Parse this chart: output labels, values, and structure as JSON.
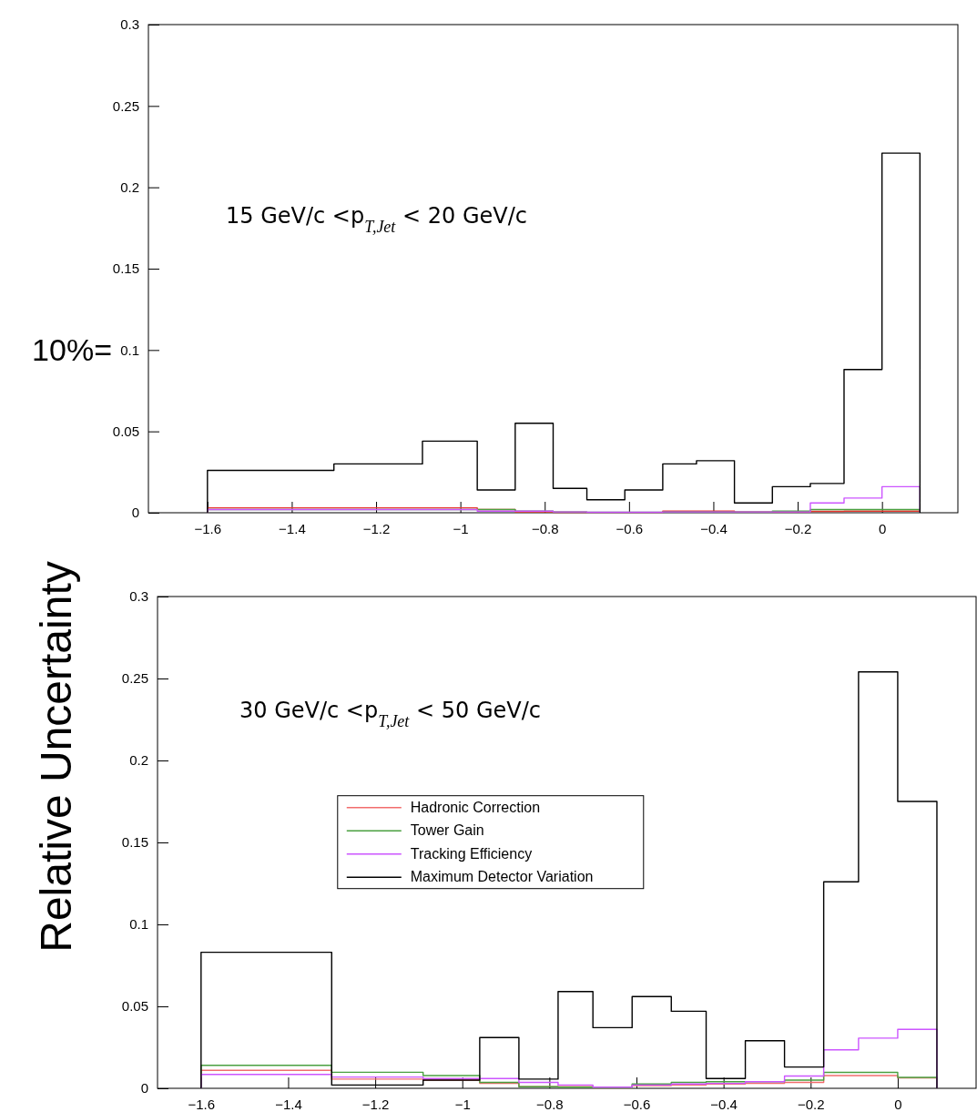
{
  "chart_data": [
    {
      "type": "histogram",
      "annotations": [
        "15 GeV/c <p$_{T,Jet}$ < 20 GeV/c",
        "10%="
      ],
      "ylabel": "Relative Uncertainty",
      "bins": [
        -1.6,
        -1.3,
        -1.09,
        -0.96,
        -0.87,
        -0.78,
        -0.7,
        -0.61,
        -0.52,
        -0.44,
        -0.35,
        -0.26,
        -0.17,
        -0.09,
        0,
        0.09
      ],
      "series": [
        {
          "color": "#e8352d",
          "values": [
            0.003,
            0.003,
            0.003,
            0.002,
            0.0005,
            0.0003,
            0.0002,
            0.0002,
            0.001,
            0.001,
            0.0005,
            0.0005,
            0.0008,
            0.001,
            0.001
          ]
        },
        {
          "color": "#4aa040",
          "values": [
            0.002,
            0.002,
            0.002,
            0.002,
            0.001,
            0.0005,
            0.0003,
            0.0003,
            0.0005,
            0.0005,
            0.0005,
            0.001,
            0.002,
            0.002,
            0.002
          ]
        },
        {
          "color": "#cc55ff",
          "values": [
            0.002,
            0.002,
            0.002,
            0.001,
            0.001,
            0.0005,
            0.0003,
            0.0003,
            0.0005,
            0.0005,
            0.0005,
            0.0005,
            0.006,
            0.009,
            0.016
          ]
        },
        {
          "color": "#000000",
          "values": [
            0.026,
            0.03,
            0.044,
            0.014,
            0.055,
            0.015,
            0.008,
            0.014,
            0.03,
            0.032,
            0.006,
            0.016,
            0.018,
            0.088,
            0.221
          ]
        }
      ],
      "xlim": [
        -1.74,
        0.18
      ],
      "xticks": [
        -1.6,
        -1.4,
        -1.2,
        -1,
        -0.8,
        -0.6,
        -0.4,
        -0.2,
        0
      ],
      "ylim": [
        0,
        0.3
      ],
      "yticks": [
        0,
        0.05,
        0.1,
        0.15,
        0.2,
        0.25,
        0.3
      ],
      "legend": false
    },
    {
      "type": "histogram",
      "annotations": [
        "30 GeV/c <p$_{T,Jet}$ < 50 GeV/c"
      ],
      "bins": [
        -1.6,
        -1.3,
        -1.09,
        -0.96,
        -0.87,
        -0.78,
        -0.7,
        -0.61,
        -0.52,
        -0.44,
        -0.35,
        -0.26,
        -0.17,
        -0.09,
        0,
        0.09
      ],
      "series": [
        {
          "name": "Hadronic Correction",
          "color": "#f26d6d",
          "values": [
            0.011,
            0.0056,
            0.005,
            0.003,
            0.001,
            0.001,
            0.0002,
            0.0016,
            0.002,
            0.0026,
            0.003,
            0.0036,
            0.0078,
            0.0078,
            0.0063
          ]
        },
        {
          "name": "Tower Gain",
          "color": "#4aa040",
          "values": [
            0.014,
            0.0098,
            0.0078,
            0.0036,
            0.001,
            0.0007,
            0.0002,
            0.0026,
            0.0036,
            0.004,
            0.004,
            0.005,
            0.0097,
            0.0097,
            0.0067
          ]
        },
        {
          "name": "Tracking Efficiency",
          "color": "#cc55ff",
          "values": [
            0.0085,
            0.0069,
            0.006,
            0.006,
            0.0036,
            0.002,
            0.0007,
            0.002,
            0.0026,
            0.003,
            0.004,
            0.0075,
            0.0235,
            0.0306,
            0.036
          ]
        },
        {
          "name": "Maximum Detector Variation",
          "color": "#000000",
          "values": [
            0.083,
            0.002,
            0.005,
            0.031,
            0.0056,
            0.059,
            0.037,
            0.056,
            0.047,
            0.006,
            0.029,
            0.013,
            0.126,
            0.254,
            0.175
          ]
        }
      ],
      "xlim": [
        -1.7,
        0.18
      ],
      "xticks": [
        -1.6,
        -1.4,
        -1.2,
        -1,
        -0.8,
        -0.6,
        -0.4,
        -0.2,
        0
      ],
      "ylim": [
        0,
        0.3
      ],
      "yticks": [
        0,
        0.05,
        0.1,
        0.15,
        0.2,
        0.25,
        0.3
      ],
      "legend": "left"
    }
  ]
}
